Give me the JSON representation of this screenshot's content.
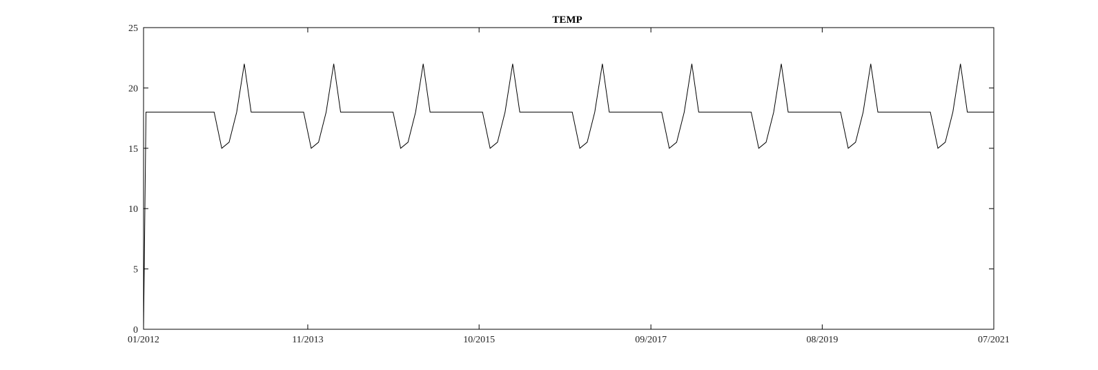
{
  "chart_data": {
    "type": "line",
    "title": "TEMP",
    "xlabel": "",
    "ylabel": "",
    "x_tick_labels": [
      "01/2012",
      "11/2013",
      "10/2015",
      "09/2017",
      "08/2019",
      "07/2021"
    ],
    "x_tick_dates": [
      "2012-01-01",
      "2013-11-01",
      "2015-10-01",
      "2017-09-01",
      "2019-08-01",
      "2021-07-01"
    ],
    "xlim": [
      "2012-01-01",
      "2021-07-01"
    ],
    "y_ticks": [
      0,
      5,
      10,
      15,
      20,
      25
    ],
    "ylim": [
      0,
      25
    ],
    "grid": false,
    "legend": false,
    "line_color": "#000000",
    "series": [
      {
        "x": [
          "2012-01-01",
          "2012-01-11",
          "2012-10-15",
          "2012-11-15",
          "2012-12-15",
          "2013-01-15",
          "2013-02-15",
          "2013-03-15",
          "2013-10-15",
          "2013-11-15",
          "2013-12-15",
          "2014-01-15",
          "2014-02-15",
          "2014-03-15",
          "2014-10-15",
          "2014-11-15",
          "2014-12-15",
          "2015-01-15",
          "2015-02-15",
          "2015-03-15",
          "2015-10-15",
          "2015-11-15",
          "2015-12-15",
          "2016-01-15",
          "2016-02-15",
          "2016-03-15",
          "2016-10-15",
          "2016-11-15",
          "2016-12-15",
          "2017-01-15",
          "2017-02-15",
          "2017-03-15",
          "2017-10-15",
          "2017-11-15",
          "2017-12-15",
          "2018-01-15",
          "2018-02-15",
          "2018-03-15",
          "2018-10-15",
          "2018-11-15",
          "2018-12-15",
          "2019-01-15",
          "2019-02-15",
          "2019-03-15",
          "2019-10-15",
          "2019-11-15",
          "2019-12-15",
          "2020-01-15",
          "2020-02-15",
          "2020-03-15",
          "2020-10-15",
          "2020-11-15",
          "2020-12-15",
          "2021-01-15",
          "2021-02-15",
          "2021-03-15",
          "2021-07-01"
        ],
        "y": [
          0,
          18,
          18,
          15,
          15.5,
          18,
          22,
          18,
          18,
          15,
          15.5,
          18,
          22,
          18,
          18,
          15,
          15.5,
          18,
          22,
          18,
          18,
          15,
          15.5,
          18,
          22,
          18,
          18,
          15,
          15.5,
          18,
          22,
          18,
          18,
          15,
          15.5,
          18,
          22,
          18,
          18,
          15,
          15.5,
          18,
          22,
          18,
          18,
          15,
          15.5,
          18,
          22,
          18,
          18,
          15,
          15.5,
          18,
          22,
          18,
          18
        ]
      }
    ]
  }
}
